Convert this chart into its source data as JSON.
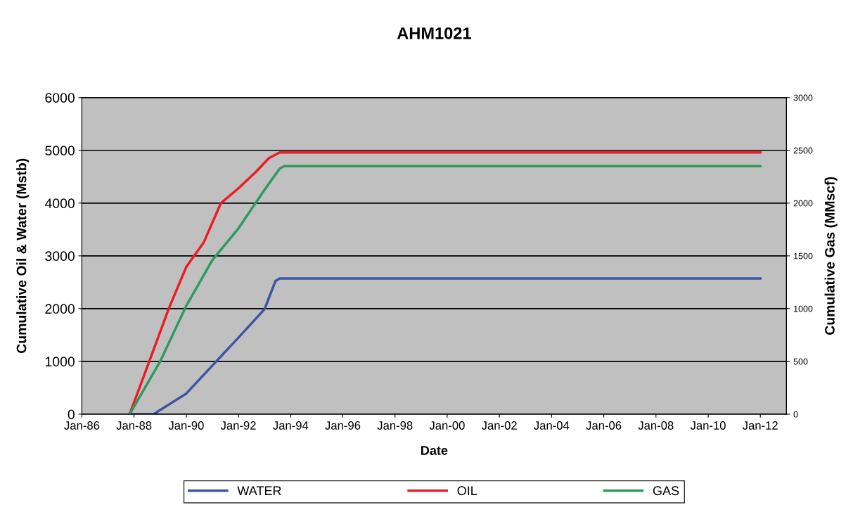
{
  "chart_data": {
    "type": "line",
    "title": "AHM1021",
    "xlabel": "Date",
    "ylabel": "Cumulative Oil & Water (Mstb)",
    "y2label": "Cumulative Gas (MMscf)",
    "xlim": [
      "1986-01-01",
      "2013-01-01"
    ],
    "xticks": [
      {
        "value": "1986-01-01",
        "label": "Jan-86"
      },
      {
        "value": "1988-01-01",
        "label": "Jan-88"
      },
      {
        "value": "1990-01-01",
        "label": "Jan-90"
      },
      {
        "value": "1992-01-01",
        "label": "Jan-92"
      },
      {
        "value": "1994-01-01",
        "label": "Jan-94"
      },
      {
        "value": "1996-01-01",
        "label": "Jan-96"
      },
      {
        "value": "1998-01-01",
        "label": "Jan-98"
      },
      {
        "value": "2000-01-01",
        "label": "Jan-00"
      },
      {
        "value": "2002-01-01",
        "label": "Jan-02"
      },
      {
        "value": "2004-01-01",
        "label": "Jan-04"
      },
      {
        "value": "2006-01-01",
        "label": "Jan-06"
      },
      {
        "value": "2008-01-01",
        "label": "Jan-08"
      },
      {
        "value": "2010-01-01",
        "label": "Jan-10"
      },
      {
        "value": "2012-01-01",
        "label": "Jan-12"
      }
    ],
    "ylim": [
      0,
      6000
    ],
    "yticks": [
      0,
      1000,
      2000,
      3000,
      4000,
      5000,
      6000
    ],
    "y2lim": [
      0,
      3000
    ],
    "y2ticks": [
      0,
      500,
      1000,
      1500,
      2000,
      2500,
      3000
    ],
    "grid": "y",
    "legend": "bottom",
    "line_style": "solid",
    "marker": "none",
    "series": [
      {
        "name": "WATER",
        "color": "#3a55a4",
        "x": [
          "1987-11",
          "1988-10",
          "1989-01",
          "1990-01",
          "1991-01",
          "1992-01",
          "1993-01",
          "1993-06",
          "1993-08",
          "2012-01"
        ],
        "values": [
          0,
          0,
          80,
          390,
          920,
          1450,
          1990,
          2520,
          2570,
          2570
        ]
      },
      {
        "name": "OIL",
        "color": "#ed1c24",
        "x": [
          "1987-11",
          "1988-08",
          "1989-05",
          "1990-01",
          "1990-09",
          "1991-05",
          "1992-01",
          "1992-09",
          "1993-03",
          "1993-08",
          "2012-01"
        ],
        "values": [
          0,
          1000,
          2000,
          2790,
          3250,
          4000,
          4280,
          4590,
          4850,
          4960,
          4960
        ]
      },
      {
        "name": "GAS",
        "color": "#2e9a62",
        "axis": "y2",
        "x": [
          "1987-11",
          "1989-01",
          "1990-01",
          "1991-01",
          "1992-01",
          "1993-01",
          "1993-08",
          "1993-10",
          "2012-01"
        ],
        "values": [
          0,
          500,
          1027,
          1460,
          1760,
          2127,
          2327,
          2350,
          2350
        ]
      }
    ]
  }
}
